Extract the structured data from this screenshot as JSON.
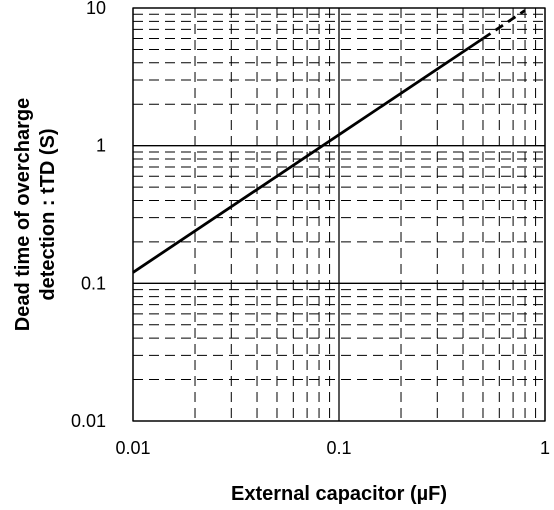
{
  "chart_data": {
    "type": "line",
    "title": "",
    "xlabel": "External capacitor (µF)",
    "ylabel_lines": [
      "Dead time of overcharge",
      "detection : tTD (S)"
    ],
    "x_scale": "log",
    "y_scale": "log",
    "xlim": [
      0.01,
      1
    ],
    "ylim": [
      0.01,
      10
    ],
    "x_ticks": [
      0.01,
      0.1,
      1
    ],
    "x_tick_labels": [
      "0.01",
      "0.1",
      "1"
    ],
    "y_ticks": [
      0.01,
      0.1,
      1,
      10
    ],
    "y_tick_labels": [
      "0.01",
      "0.1",
      "1",
      "10"
    ],
    "grid": true,
    "series": [
      {
        "style": "solid",
        "x": [
          0.01,
          0.5
        ],
        "y": [
          0.12,
          6.0
        ]
      },
      {
        "style": "dashed",
        "x": [
          0.5,
          0.8
        ],
        "y": [
          6.0,
          9.6
        ]
      }
    ]
  }
}
